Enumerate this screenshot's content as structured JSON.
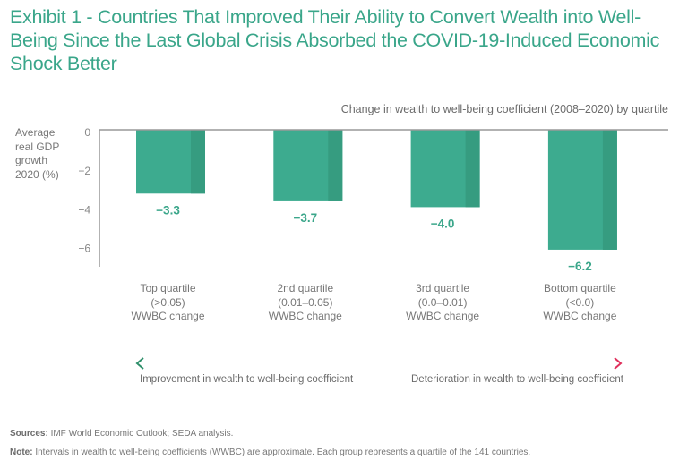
{
  "title": "Exhibit 1 - Countries That Improved Their Ability to Convert Wealth into Well-Being Since the Last Global Crisis Absorbed the COVID-19-Induced Economic Shock Better",
  "subtitle": "Change in wealth to well-being coefficient (2008–2020) by quartile",
  "colors": {
    "bar": "#3dab8f",
    "bar_shade": "#369c80",
    "title": "#3aa68a",
    "label": "#3aa68a",
    "arrow_left": "#2f8f6b",
    "arrow_right": "#e0305c"
  },
  "chart_data": {
    "type": "bar",
    "title": "Exhibit 1 - Countries That Improved Their Ability to Convert Wealth into Well-Being Since the Last Global Crisis Absorbed the COVID-19-Induced Economic Shock Better",
    "subtitle": "Change in wealth to well-being coefficient (2008–2020) by quartile",
    "ylabel": "Average real GDP growth 2020 (%)",
    "xlabel": "",
    "categories": [
      "Top quartile (>0.05) WWBC change",
      "2nd quartile (0.01–0.05) WWBC change",
      "3rd quartile (0.0–0.01) WWBC change",
      "Bottom quartile (<0.0) WWBC change"
    ],
    "category_lines": [
      [
        "Top quartile",
        "(>0.05)",
        "WWBC change"
      ],
      [
        "2nd quartile",
        "(0.01–0.05)",
        "WWBC change"
      ],
      [
        "3rd quartile",
        "(0.0–0.01)",
        "WWBC change"
      ],
      [
        "Bottom quartile",
        "(<0.0)",
        "WWBC change"
      ]
    ],
    "values": [
      -3.3,
      -3.7,
      -4.0,
      -6.2
    ],
    "data_labels": [
      "−3.3",
      "−3.7",
      "−4.0",
      "−6.2"
    ],
    "yticks": [
      0,
      -2,
      -4,
      -6
    ],
    "ytick_labels": [
      "0",
      "−2",
      "−4",
      "−6"
    ],
    "ylim": [
      -7,
      0
    ],
    "grid": false,
    "legend": "none"
  },
  "ylabel_lines": [
    "Average",
    "real GDP",
    "growth",
    "2020 (%)"
  ],
  "arrow": {
    "left_label": "Improvement in wealth to well-being coefficient",
    "right_label": "Deterioration in wealth to well-being coefficient"
  },
  "footer": {
    "sources_label": "Sources:",
    "sources_text": " IMF World Economic Outlook; SEDA analysis.",
    "note_label": "Note:",
    "note_text": " Intervals in wealth to well-being coefficients (WWBC) are approximate. Each group represents a quartile of the 141 countries."
  }
}
